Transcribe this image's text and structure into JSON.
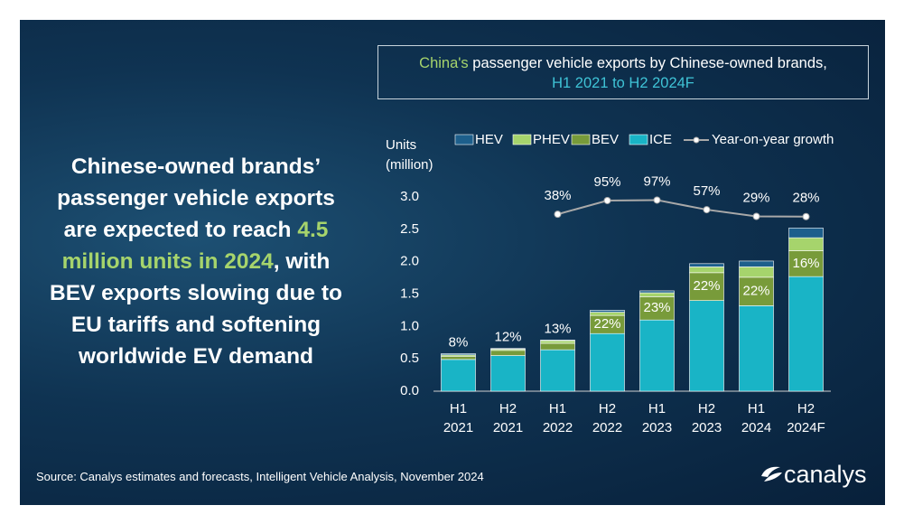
{
  "headline": {
    "before": "Chinese-owned brands’ passenger vehicle exports are expected to reach ",
    "highlight": "4.5 million units in 2024",
    "after": ", with BEV exports slowing due to EU tariffs and softening worldwide EV demand"
  },
  "chart_data": {
    "type": "bar",
    "stacked": true,
    "title_lead": "China's",
    "title": "passenger vehicle exports by Chinese-owned brands,",
    "subtitle": "H1 2021 to H2 2024F",
    "y_label": "Units (million)",
    "categories": [
      "H1 2021",
      "H2 2021",
      "H1 2022",
      "H2 2022",
      "H1 2023",
      "H2 2023",
      "H1 2024",
      "H2 2024F"
    ],
    "series": [
      {
        "name": "HEV",
        "color": "#1d5f8c",
        "values": [
          0.02,
          0.01,
          0.01,
          0.03,
          0.03,
          0.05,
          0.09,
          0.15
        ]
      },
      {
        "name": "PHEV",
        "color": "#a6d46c",
        "values": [
          0.02,
          0.02,
          0.04,
          0.05,
          0.06,
          0.09,
          0.16,
          0.2
        ]
      },
      {
        "name": "BEV",
        "color": "#789b3a",
        "values": [
          0.05,
          0.08,
          0.1,
          0.28,
          0.36,
          0.43,
          0.44,
          0.4
        ],
        "share_labels": [
          "8%",
          "12%",
          "13%",
          "22%",
          "23%",
          "22%",
          "22%",
          "16%"
        ]
      },
      {
        "name": "ICE",
        "color": "#19b4c6",
        "values": [
          0.49,
          0.55,
          0.64,
          0.89,
          1.1,
          1.4,
          1.32,
          1.77
        ]
      },
      {
        "name": "Year-on-year growth",
        "type": "line",
        "axis": "y2",
        "color": "#a9a9a9",
        "values": [
          null,
          null,
          38,
          95,
          97,
          57,
          29,
          28
        ],
        "value_labels": [
          null,
          null,
          "38%",
          "95%",
          "97%",
          "57%",
          "29%",
          "28%"
        ]
      }
    ],
    "ylim": [
      0,
      3
    ],
    "yticks": [
      {
        "value": 0,
        "label": "0.0"
      },
      0.5,
      {
        "value": 1,
        "label": "1.0"
      },
      1.5,
      {
        "value": 2,
        "label": "2.0"
      },
      2.5,
      {
        "value": 3,
        "label": "3.0"
      }
    ],
    "y2lim": [
      -700,
      110
    ],
    "grid": false
  },
  "source": "Source: Canalys estimates and forecasts, Intelligent Vehicle Analysis, November 2024",
  "logo": "canalys"
}
